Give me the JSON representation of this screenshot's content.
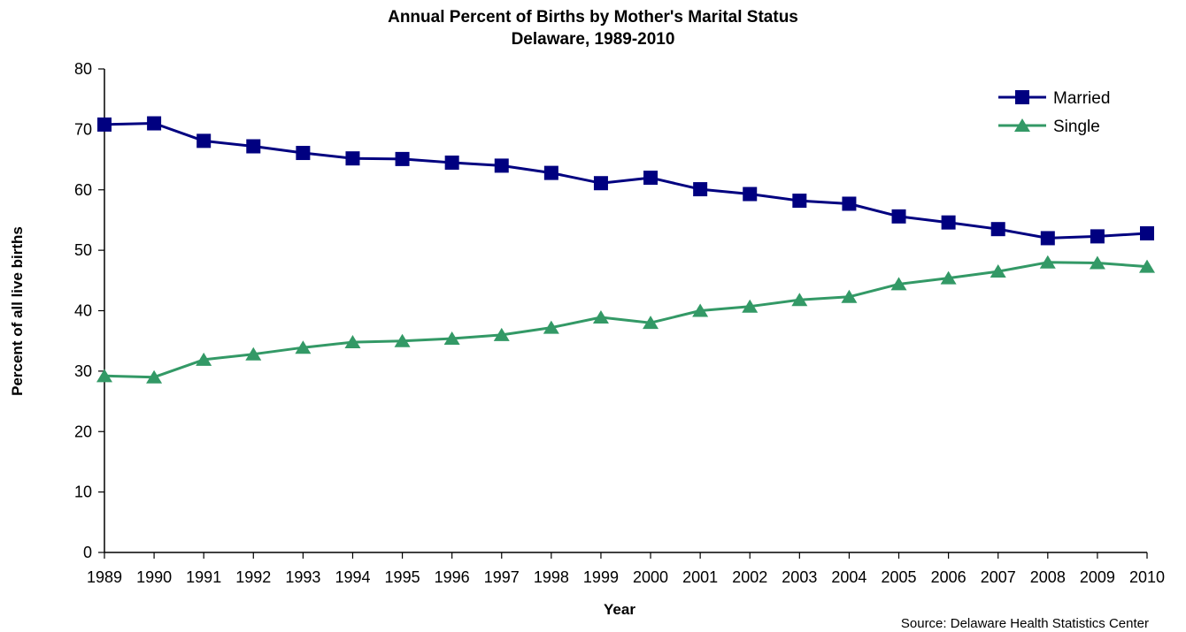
{
  "chart_data": {
    "type": "line",
    "title": "Annual Percent of Births by Mother's Marital Status",
    "subtitle": "Delaware, 1989-2010",
    "xlabel": "Year",
    "ylabel": "Percent of all live births",
    "ylim": [
      0,
      80
    ],
    "yticks": [
      "0",
      "10",
      "20",
      "30",
      "40",
      "50",
      "60",
      "70",
      "80"
    ],
    "categories": [
      "1989",
      "1990",
      "1991",
      "1992",
      "1993",
      "1994",
      "1995",
      "1996",
      "1997",
      "1998",
      "1999",
      "2000",
      "2001",
      "2002",
      "2003",
      "2004",
      "2005",
      "2006",
      "2007",
      "2008",
      "2009",
      "2010"
    ],
    "series": [
      {
        "name": "Married",
        "color": "#000080",
        "marker": "square",
        "values": [
          70.8,
          71.0,
          68.1,
          67.2,
          66.1,
          65.2,
          65.1,
          64.5,
          64.0,
          62.8,
          61.1,
          62.0,
          60.1,
          59.3,
          58.2,
          57.7,
          55.6,
          54.6,
          53.5,
          52.0,
          52.3,
          52.8
        ]
      },
      {
        "name": "Single",
        "color": "#339966",
        "marker": "triangle",
        "values": [
          29.2,
          29.0,
          31.9,
          32.8,
          33.9,
          34.8,
          35.0,
          35.4,
          36.0,
          37.2,
          38.9,
          38.0,
          40.0,
          40.7,
          41.8,
          42.3,
          44.4,
          45.4,
          46.5,
          48.0,
          47.9,
          47.3
        ]
      }
    ],
    "legend_position": "top-right",
    "grid": false,
    "source": "Source: Delaware Health Statistics Center"
  }
}
